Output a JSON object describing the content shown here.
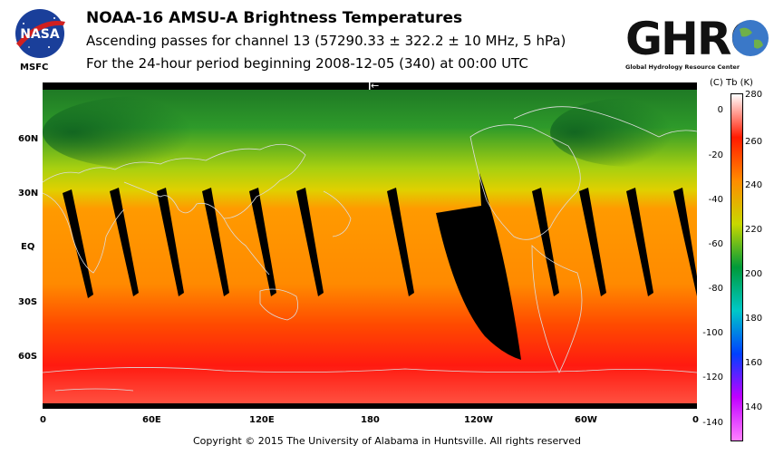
{
  "header": {
    "nasa_logo_text": "NASA",
    "msfc": "MSFC",
    "title": "NOAA-16 AMSU-A Brightness Temperatures",
    "subtitle1": "Ascending passes for channel 13 (57290.33 ± 322.2 ± 10 MHz, 5 hPa)",
    "subtitle2": "For the 24-hour period beginning 2008-12-05 (340) at 00:00 UTC",
    "ghrc_logo_text": "GHRC",
    "ghrc_tagline": "Global Hydrology Resource Center"
  },
  "map": {
    "lat_labels": [
      "60N",
      "30N",
      "EQ",
      "30S",
      "60S"
    ],
    "lon_labels": [
      "0",
      "60E",
      "120E",
      "180",
      "120W",
      "60W",
      "0"
    ],
    "date_line_marker": "←",
    "colors": {
      "polar_north": "#1e8a2a",
      "mid_north": "#9ccc10",
      "tropics": "#ff9a00",
      "south": "#ff2a00",
      "gap": "#000000",
      "coast": "#d8d8d8"
    }
  },
  "colorbar": {
    "units_label": "(C)  Tb  (K)",
    "kelvin_ticks": [
      "280",
      "260",
      "240",
      "220",
      "200",
      "180",
      "160",
      "140"
    ],
    "celsius_ticks": [
      "0",
      "-20",
      "-40",
      "-60",
      "-80",
      "-100",
      "-120",
      "-140"
    ],
    "gradient": [
      "#ffffff",
      "#ff1a00",
      "#ff8c00",
      "#c8d800",
      "#009a3a",
      "#00c8c8",
      "#0040ff",
      "#c000ff",
      "#ff80ff"
    ]
  },
  "footer": {
    "copyright": "Copyright © 2015 The University of Alabama in Huntsville.  All rights reserved"
  }
}
